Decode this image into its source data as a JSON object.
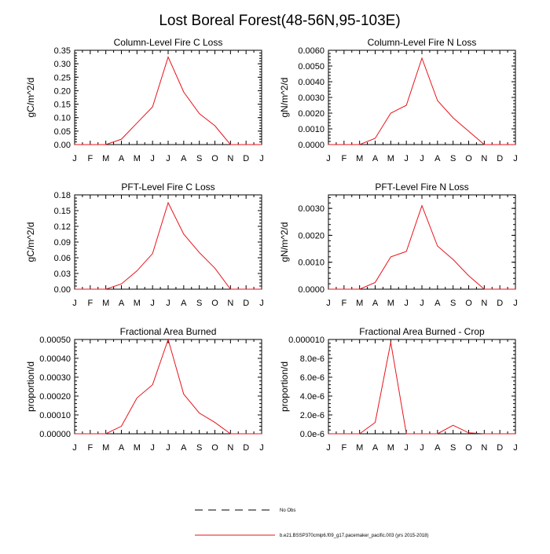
{
  "title": "Lost Boreal Forest(48-56N,95-103E)",
  "legend": {
    "obs_label": "No Obs",
    "model_label": "b.e21.BSSP370cmip6.f09_g17.pacemaker_pacific.003 (yrs 2015-2018)",
    "model_color": "#e8131b",
    "obs_color": "#000000"
  },
  "chart_data": [
    {
      "type": "line",
      "title": "Column-Level Fire C Loss",
      "ylabel": "gC/m^2/d",
      "categories": [
        "J",
        "F",
        "M",
        "A",
        "M",
        "J",
        "J",
        "A",
        "S",
        "O",
        "N",
        "D",
        "J"
      ],
      "series": [
        {
          "values": [
            0,
            0,
            0,
            0.02,
            0.08,
            0.14,
            0.325,
            0.195,
            0.115,
            0.07,
            0.0,
            0.0,
            0.0
          ]
        }
      ],
      "ylim": [
        0,
        0.35
      ],
      "yticks": [
        "0.00",
        "0.05",
        "0.10",
        "0.15",
        "0.20",
        "0.25",
        "0.30",
        "0.35"
      ]
    },
    {
      "type": "line",
      "title": "Column-Level Fire N Loss",
      "ylabel": "gN/m^2/d",
      "categories": [
        "J",
        "F",
        "M",
        "A",
        "M",
        "J",
        "J",
        "A",
        "S",
        "O",
        "N",
        "D",
        "J"
      ],
      "series": [
        {
          "values": [
            0,
            0,
            0,
            0.0004,
            0.002,
            0.0025,
            0.0055,
            0.0028,
            0.0017,
            0.00085,
            0.0,
            0.0,
            0.0
          ]
        }
      ],
      "ylim": [
        0,
        0.006
      ],
      "yticks": [
        "0.0000",
        "0.0010",
        "0.0020",
        "0.0030",
        "0.0040",
        "0.0050",
        "0.0060"
      ]
    },
    {
      "type": "line",
      "title": "PFT-Level Fire C Loss",
      "ylabel": "gC/m^2/d",
      "categories": [
        "J",
        "F",
        "M",
        "A",
        "M",
        "J",
        "J",
        "A",
        "S",
        "O",
        "N",
        "D",
        "J"
      ],
      "series": [
        {
          "values": [
            0,
            0,
            0,
            0.01,
            0.035,
            0.068,
            0.165,
            0.105,
            0.07,
            0.04,
            0.0,
            0.0,
            0.0
          ]
        }
      ],
      "ylim": [
        0,
        0.18
      ],
      "yticks": [
        "0.00",
        "0.03",
        "0.06",
        "0.09",
        "0.12",
        "0.15",
        "0.18"
      ]
    },
    {
      "type": "line",
      "title": "PFT-Level Fire N Loss",
      "ylabel": "gN/m^2/d",
      "categories": [
        "J",
        "F",
        "M",
        "A",
        "M",
        "J",
        "J",
        "A",
        "S",
        "O",
        "N",
        "D",
        "J"
      ],
      "series": [
        {
          "values": [
            0,
            0,
            0,
            0.00025,
            0.0012,
            0.0014,
            0.0031,
            0.0016,
            0.0011,
            0.0005,
            0.0,
            0.0,
            0.0
          ]
        }
      ],
      "ylim": [
        0,
        0.0035
      ],
      "yticks": [
        "0.0000",
        "0.0010",
        "0.0020",
        "0.0030"
      ],
      "ytick_values": [
        0,
        0.001,
        0.002,
        0.003
      ]
    },
    {
      "type": "line",
      "title": "Fractional Area Burned",
      "ylabel": "proportion/d",
      "categories": [
        "J",
        "F",
        "M",
        "A",
        "M",
        "J",
        "J",
        "A",
        "S",
        "O",
        "N",
        "D",
        "J"
      ],
      "series": [
        {
          "values": [
            0,
            0,
            0,
            4e-05,
            0.00019,
            0.00026,
            0.0005,
            0.00021,
            0.00011,
            6e-05,
            0.0,
            0.0,
            0.0
          ]
        }
      ],
      "ylim": [
        0,
        0.0005
      ],
      "yticks": [
        "0.00000",
        "0.00010",
        "0.00020",
        "0.00030",
        "0.00040",
        "0.00050"
      ]
    },
    {
      "type": "line",
      "title": "Fractional Area Burned - Crop",
      "ylabel": "proportion/d",
      "categories": [
        "J",
        "F",
        "M",
        "A",
        "M",
        "J",
        "J",
        "A",
        "S",
        "O",
        "N",
        "D",
        "J"
      ],
      "series": [
        {
          "values": [
            0,
            0,
            0,
            1.2e-06,
            9.7e-06,
            0,
            0,
            0,
            9e-07,
            1e-07,
            0,
            0,
            0
          ]
        }
      ],
      "ylim": [
        0,
        1e-05
      ],
      "yticks": [
        "0.0e-6",
        "2.0e-6",
        "4.0e-6",
        "6.0e-6",
        "8.0e-6",
        "0.000010"
      ]
    }
  ]
}
